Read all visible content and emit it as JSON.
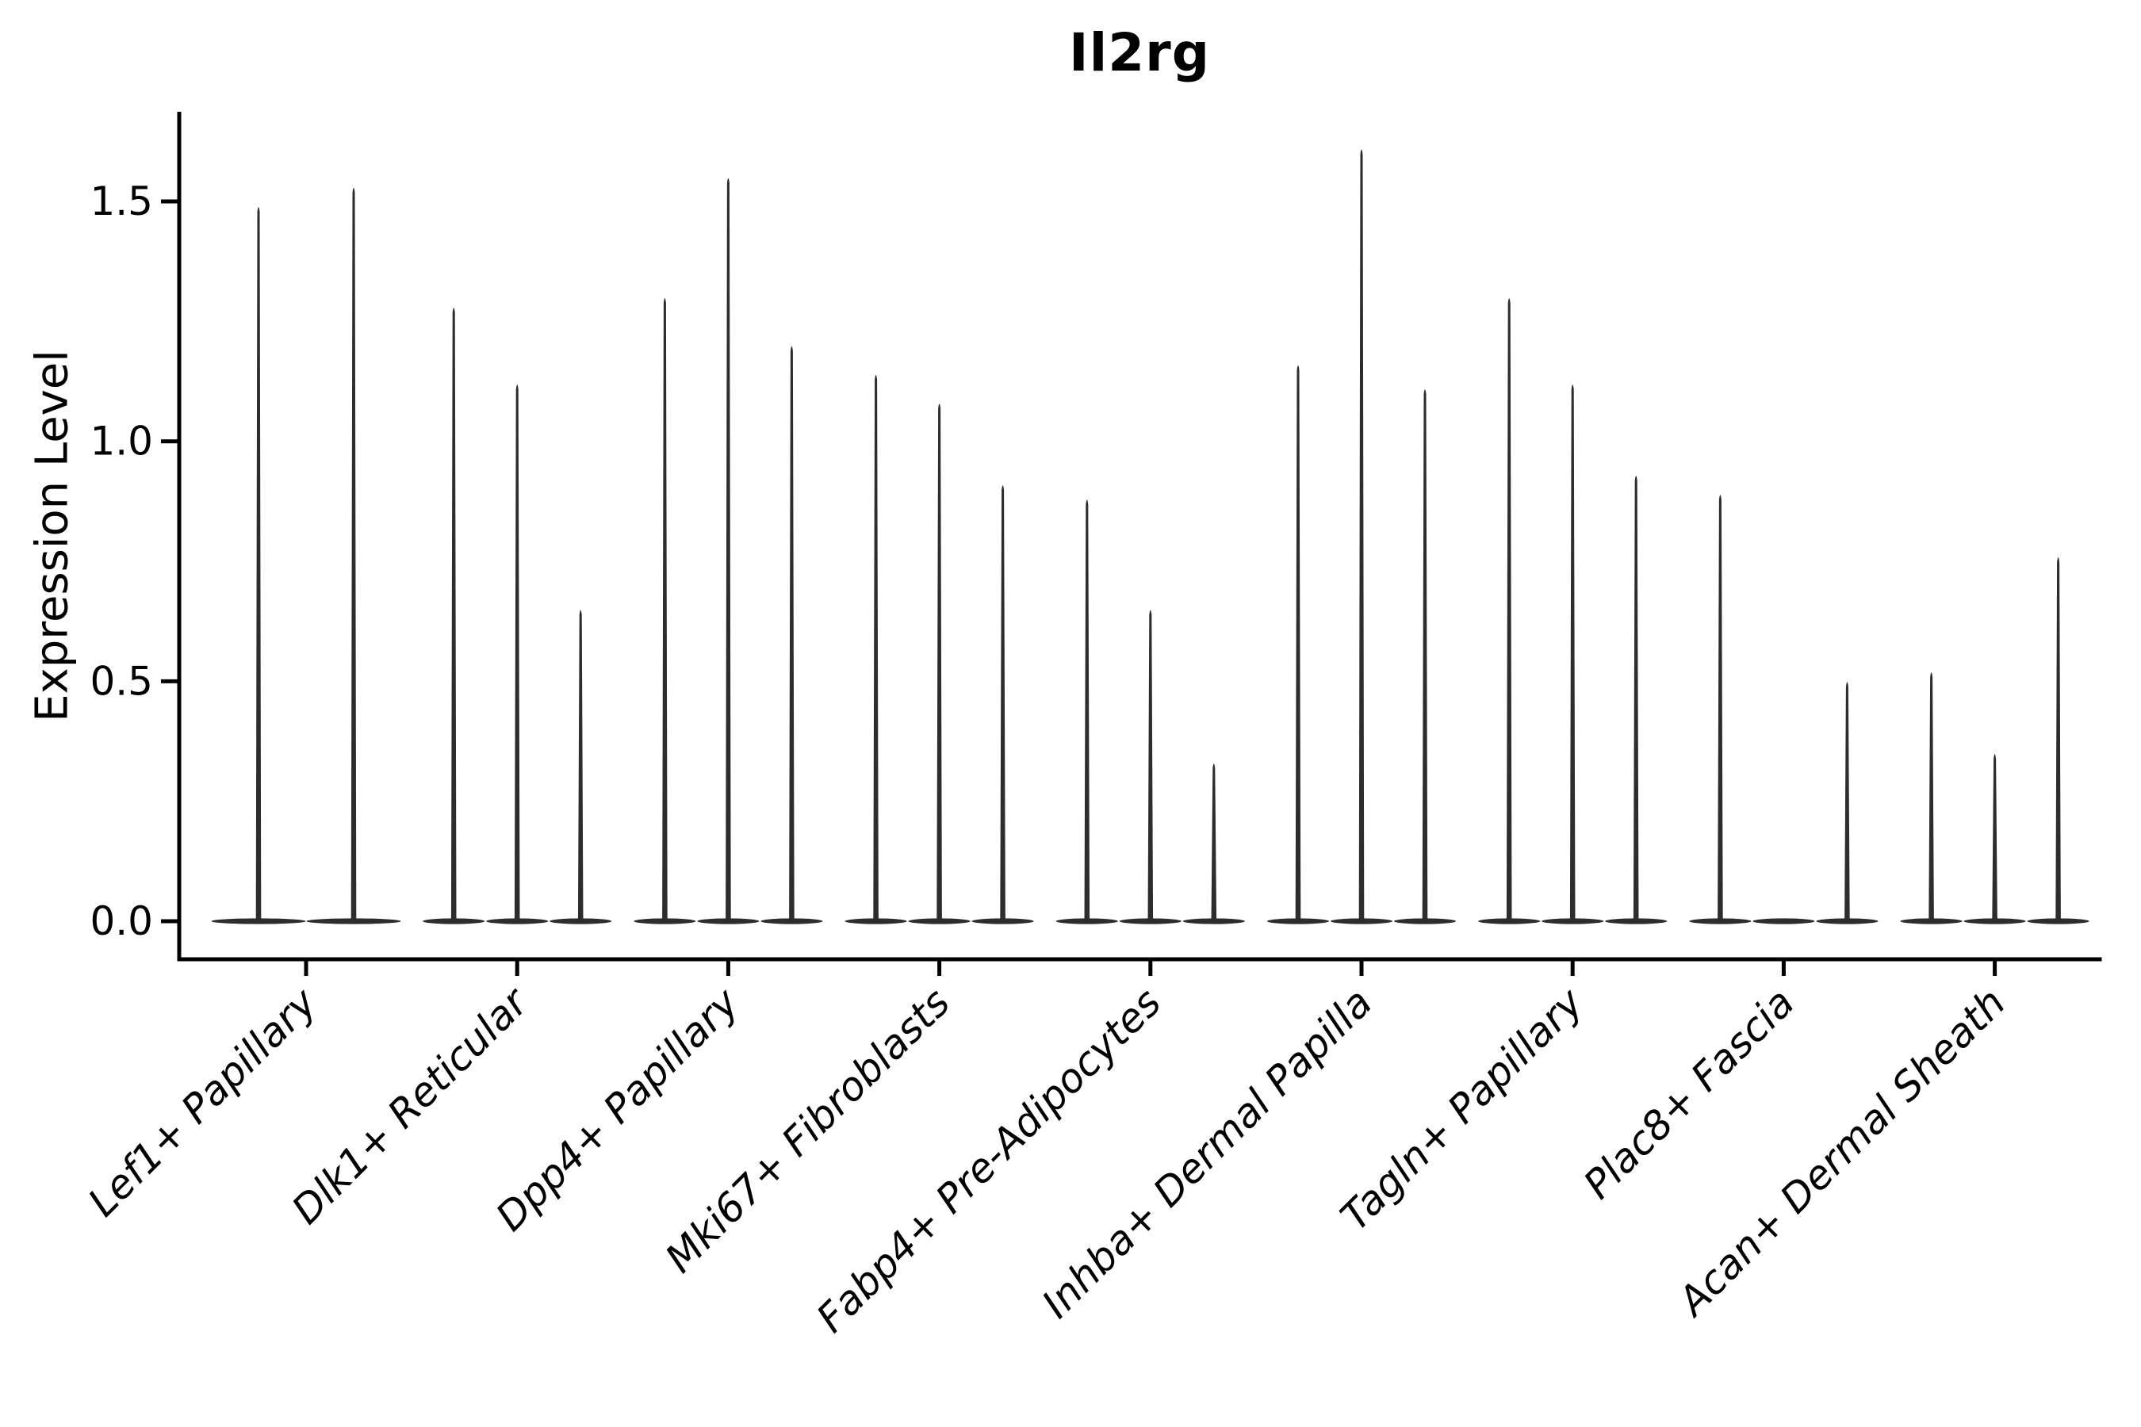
{
  "figure": {
    "title": "Il2rg",
    "ylabel": "Expression Level"
  },
  "colors": {
    "violin_stroke": "#2d2d2d",
    "axis": "#000000",
    "text": "#000000",
    "background": "#ffffff"
  },
  "chart_data": {
    "type": "violin",
    "title": "Il2rg",
    "xlabel": "",
    "ylabel": "Expression Level",
    "grid": false,
    "legend_position": "none",
    "ylim": [
      -0.08,
      1.69
    ],
    "yticks": [
      0.0,
      0.5,
      1.0,
      1.5
    ],
    "ytick_labels": [
      "0.0",
      "0.5",
      "1.0",
      "1.5"
    ],
    "categories": [
      "Lef1+ Papillary",
      "Dlk1+ Reticular",
      "Dpp4+ Papillary",
      "Mki67+ Fibroblasts",
      "Fabp4+ Pre-Adipocytes",
      "Inhba+ Dermal Papilla",
      "Tagln+ Papillary",
      "Plac8+ Fascia",
      "Acan+ Dermal Sheath"
    ],
    "groups": [
      {
        "label": "Lef1+ Papillary",
        "violin_maxima": [
          1.49,
          1.53
        ]
      },
      {
        "label": "Dlk1+ Reticular",
        "violin_maxima": [
          1.28,
          1.12,
          0.65
        ]
      },
      {
        "label": "Dpp4+ Papillary",
        "violin_maxima": [
          1.3,
          1.55,
          1.2
        ]
      },
      {
        "label": "Mki67+ Fibroblasts",
        "violin_maxima": [
          1.14,
          1.08,
          0.91
        ]
      },
      {
        "label": "Fabp4+ Pre-Adipocytes",
        "violin_maxima": [
          0.88,
          0.65,
          0.33
        ]
      },
      {
        "label": "Inhba+ Dermal Papilla",
        "violin_maxima": [
          1.16,
          1.61,
          1.11
        ]
      },
      {
        "label": "Tagln+ Papillary",
        "violin_maxima": [
          1.3,
          1.12,
          0.93
        ]
      },
      {
        "label": "Plac8+ Fascia",
        "violin_maxima": [
          0.89,
          0.0,
          0.5
        ]
      },
      {
        "label": "Acan+ Dermal Sheath",
        "violin_maxima": [
          0.52,
          0.35,
          0.76
        ]
      }
    ],
    "note": "Each category shows thin collapsed violins (most observations at 0) with a narrow spike up to the listed maximum expression value; a 0.0 entry is a flat violin with no spike."
  }
}
